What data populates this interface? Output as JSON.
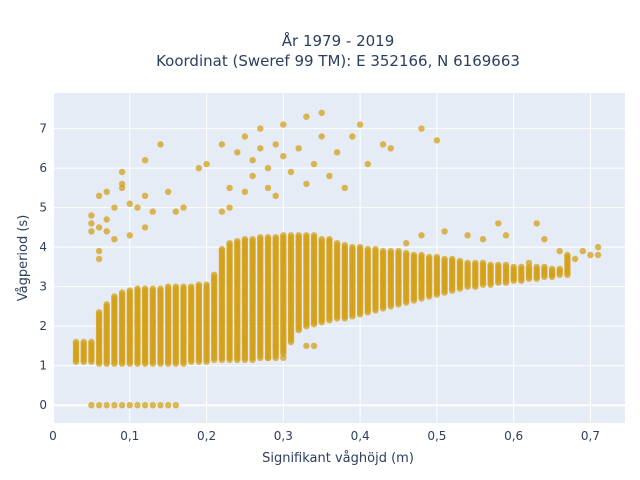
{
  "chart_data": {
    "type": "scatter",
    "title_line1": "År 1979 - 2019",
    "title_line2": "Koordinat (Sweref 99 TM): E 352166, N 6169663",
    "xlabel": "Signifikant våghöjd (m)",
    "ylabel": "Vågperiod (s)",
    "xlim": [
      0,
      0.745
    ],
    "ylim": [
      -0.45,
      7.9
    ],
    "xticks": [
      0,
      0.1,
      0.2,
      0.3,
      0.4,
      0.5,
      0.6,
      0.7
    ],
    "xtick_labels": [
      "0",
      "0,1",
      "0,2",
      "0,3",
      "0,4",
      "0,5",
      "0,6",
      "0,7"
    ],
    "yticks": [
      0,
      1,
      2,
      3,
      4,
      5,
      6,
      7
    ],
    "ytick_labels": [
      "0",
      "1",
      "2",
      "3",
      "4",
      "5",
      "6",
      "7"
    ],
    "grid": true,
    "legend": false,
    "colors": {
      "marker": "#D4A017",
      "plot_bg": "#e5ecf6",
      "grid": "#ffffff",
      "text": "#2a3f5f"
    },
    "series": [
      {
        "dense_columns": [
          [
            0.03,
            1.1,
            1.6
          ],
          [
            0.04,
            1.1,
            1.6
          ],
          [
            0.05,
            1.1,
            1.6
          ],
          [
            0.06,
            1.05,
            2.35
          ],
          [
            0.07,
            1.05,
            2.55
          ],
          [
            0.08,
            1.05,
            2.75
          ],
          [
            0.09,
            1.05,
            2.85
          ],
          [
            0.1,
            1.05,
            2.9
          ],
          [
            0.11,
            1.05,
            2.95
          ],
          [
            0.12,
            1.05,
            2.95
          ],
          [
            0.13,
            1.05,
            2.95
          ],
          [
            0.14,
            1.05,
            2.95
          ],
          [
            0.15,
            1.05,
            3.0
          ],
          [
            0.16,
            1.05,
            3.0
          ],
          [
            0.17,
            1.05,
            3.0
          ],
          [
            0.18,
            1.1,
            3.0
          ],
          [
            0.19,
            1.1,
            3.05
          ],
          [
            0.2,
            1.1,
            3.05
          ],
          [
            0.21,
            1.15,
            3.3
          ],
          [
            0.22,
            1.15,
            3.95
          ],
          [
            0.23,
            1.15,
            4.1
          ],
          [
            0.24,
            1.15,
            4.15
          ],
          [
            0.25,
            1.15,
            4.2
          ],
          [
            0.26,
            1.15,
            4.2
          ],
          [
            0.27,
            1.2,
            4.25
          ],
          [
            0.28,
            1.2,
            4.25
          ],
          [
            0.29,
            1.2,
            4.25
          ],
          [
            0.3,
            1.3,
            4.3
          ],
          [
            0.31,
            1.6,
            4.3
          ],
          [
            0.32,
            1.9,
            4.3
          ],
          [
            0.33,
            2.0,
            4.3
          ],
          [
            0.34,
            2.05,
            4.3
          ],
          [
            0.35,
            2.1,
            4.2
          ],
          [
            0.36,
            2.15,
            4.2
          ],
          [
            0.37,
            2.2,
            4.1
          ],
          [
            0.38,
            2.2,
            4.05
          ],
          [
            0.39,
            2.25,
            4.0
          ],
          [
            0.4,
            2.3,
            4.0
          ],
          [
            0.41,
            2.35,
            3.95
          ],
          [
            0.42,
            2.4,
            3.95
          ],
          [
            0.43,
            2.45,
            3.9
          ],
          [
            0.44,
            2.5,
            3.9
          ],
          [
            0.45,
            2.55,
            3.9
          ],
          [
            0.46,
            2.6,
            3.85
          ],
          [
            0.47,
            2.65,
            3.8
          ],
          [
            0.48,
            2.7,
            3.8
          ],
          [
            0.49,
            2.75,
            3.75
          ],
          [
            0.5,
            2.8,
            3.75
          ],
          [
            0.51,
            2.85,
            3.7
          ],
          [
            0.52,
            2.9,
            3.7
          ],
          [
            0.53,
            2.95,
            3.65
          ],
          [
            0.54,
            3.0,
            3.6
          ],
          [
            0.55,
            3.0,
            3.6
          ],
          [
            0.56,
            3.05,
            3.6
          ],
          [
            0.57,
            3.05,
            3.55
          ],
          [
            0.58,
            3.1,
            3.55
          ],
          [
            0.59,
            3.1,
            3.55
          ],
          [
            0.6,
            3.15,
            3.5
          ],
          [
            0.61,
            3.15,
            3.5
          ],
          [
            0.62,
            3.2,
            3.5
          ],
          [
            0.63,
            3.2,
            3.5
          ],
          [
            0.64,
            3.25,
            3.5
          ],
          [
            0.65,
            3.25,
            3.45
          ],
          [
            0.66,
            3.3,
            3.45
          ],
          [
            0.67,
            3.3,
            3.8
          ]
        ],
        "zero_period_x": [
          0.05,
          0.06,
          0.07,
          0.08,
          0.09,
          0.1,
          0.11,
          0.12,
          0.13,
          0.14,
          0.15,
          0.16
        ],
        "sparse_points": [
          [
            0.05,
            4.6
          ],
          [
            0.05,
            4.8
          ],
          [
            0.05,
            4.4
          ],
          [
            0.06,
            5.3
          ],
          [
            0.06,
            4.5
          ],
          [
            0.06,
            3.9
          ],
          [
            0.06,
            3.7
          ],
          [
            0.07,
            5.4
          ],
          [
            0.07,
            4.7
          ],
          [
            0.07,
            4.4
          ],
          [
            0.08,
            4.2
          ],
          [
            0.08,
            5.0
          ],
          [
            0.09,
            5.9
          ],
          [
            0.09,
            5.6
          ],
          [
            0.09,
            5.5
          ],
          [
            0.1,
            4.3
          ],
          [
            0.1,
            5.1
          ],
          [
            0.11,
            5.0
          ],
          [
            0.12,
            6.2
          ],
          [
            0.12,
            5.3
          ],
          [
            0.12,
            4.5
          ],
          [
            0.13,
            4.9
          ],
          [
            0.14,
            6.6
          ],
          [
            0.15,
            5.4
          ],
          [
            0.16,
            4.9
          ],
          [
            0.17,
            5.0
          ],
          [
            0.19,
            6.0
          ],
          [
            0.2,
            6.1
          ],
          [
            0.22,
            4.9
          ],
          [
            0.22,
            6.6
          ],
          [
            0.23,
            5.0
          ],
          [
            0.23,
            5.5
          ],
          [
            0.24,
            6.4
          ],
          [
            0.25,
            6.8
          ],
          [
            0.25,
            5.4
          ],
          [
            0.26,
            6.2
          ],
          [
            0.26,
            5.8
          ],
          [
            0.27,
            7.0
          ],
          [
            0.27,
            6.5
          ],
          [
            0.28,
            5.5
          ],
          [
            0.28,
            6.0
          ],
          [
            0.29,
            6.6
          ],
          [
            0.29,
            5.3
          ],
          [
            0.3,
            7.1
          ],
          [
            0.3,
            6.3
          ],
          [
            0.31,
            5.9
          ],
          [
            0.32,
            6.5
          ],
          [
            0.33,
            7.3
          ],
          [
            0.33,
            5.6
          ],
          [
            0.34,
            6.1
          ],
          [
            0.35,
            7.4
          ],
          [
            0.35,
            6.8
          ],
          [
            0.36,
            5.8
          ],
          [
            0.37,
            6.4
          ],
          [
            0.38,
            5.5
          ],
          [
            0.39,
            6.8
          ],
          [
            0.4,
            7.1
          ],
          [
            0.41,
            6.1
          ],
          [
            0.43,
            6.6
          ],
          [
            0.44,
            6.5
          ],
          [
            0.48,
            7.0
          ],
          [
            0.5,
            6.7
          ],
          [
            0.29,
            1.5
          ],
          [
            0.33,
            1.5
          ],
          [
            0.34,
            1.5
          ],
          [
            0.28,
            1.2
          ],
          [
            0.3,
            1.2
          ],
          [
            0.46,
            4.1
          ],
          [
            0.48,
            4.3
          ],
          [
            0.51,
            4.4
          ],
          [
            0.54,
            4.3
          ],
          [
            0.56,
            4.2
          ],
          [
            0.58,
            4.6
          ],
          [
            0.59,
            4.3
          ],
          [
            0.63,
            4.6
          ],
          [
            0.64,
            4.2
          ],
          [
            0.66,
            3.9
          ],
          [
            0.69,
            3.9
          ],
          [
            0.7,
            3.8
          ],
          [
            0.71,
            4.0
          ],
          [
            0.71,
            3.8
          ],
          [
            0.62,
            3.6
          ],
          [
            0.65,
            3.3
          ],
          [
            0.68,
            3.7
          ]
        ]
      }
    ]
  }
}
